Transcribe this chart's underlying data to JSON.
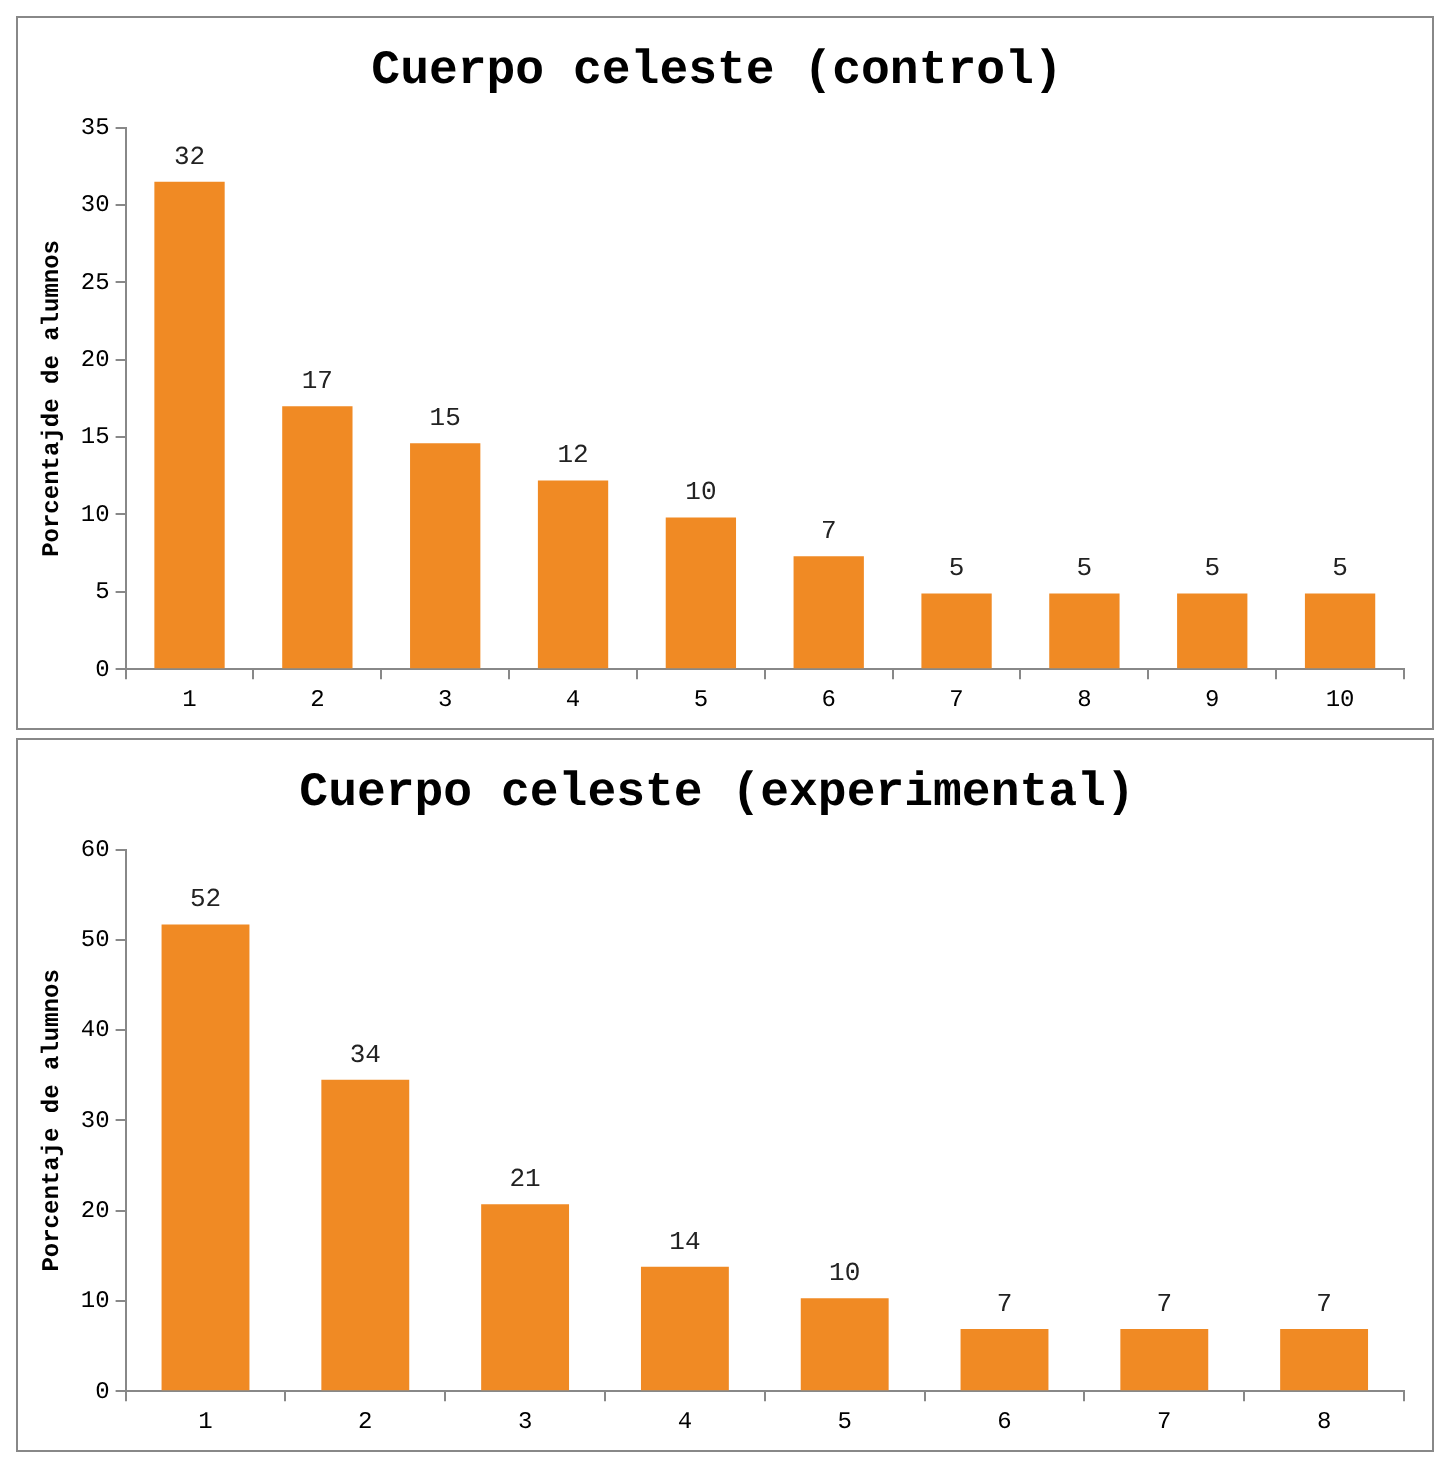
{
  "chart_data": [
    {
      "type": "bar",
      "title": "Cuerpo celeste (control)",
      "ylabel": "Porcentajde de alumnos",
      "categories": [
        "1",
        "2",
        "3",
        "4",
        "5",
        "6",
        "7",
        "8",
        "9",
        "10"
      ],
      "values": [
        31.5,
        17,
        14.6,
        12.2,
        9.8,
        7.3,
        4.9,
        4.9,
        4.9,
        4.9
      ],
      "value_labels": [
        "32",
        "17",
        "15",
        "12",
        "10",
        "7",
        "5",
        "5",
        "5",
        "5"
      ],
      "color": "#f08a24",
      "ylim": [
        0,
        35
      ],
      "yticks": [
        0,
        5,
        10,
        15,
        20,
        25,
        30,
        35
      ],
      "grid": false
    },
    {
      "type": "bar",
      "title": "Cuerpo celeste (experimental)",
      "ylabel": "Porcentaje de alumnos",
      "categories": [
        "1",
        "2",
        "3",
        "4",
        "5",
        "6",
        "7",
        "8"
      ],
      "values": [
        51.7,
        34.5,
        20.7,
        13.8,
        10.3,
        6.9,
        6.9,
        6.9
      ],
      "value_labels": [
        "52",
        "34",
        "21",
        "14",
        "10",
        "7",
        "7",
        "7"
      ],
      "color": "#f08a24",
      "ylim": [
        0,
        60
      ],
      "yticks": [
        0,
        10,
        20,
        30,
        40,
        50,
        60
      ],
      "grid": false
    }
  ]
}
